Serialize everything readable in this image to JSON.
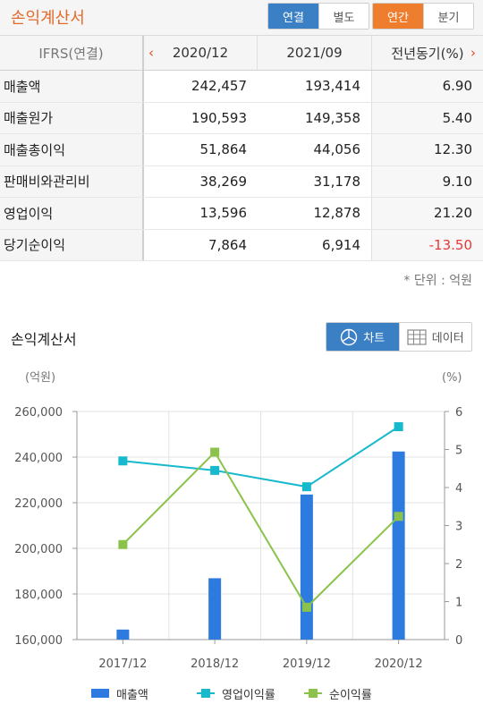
{
  "header": {
    "title": "손익계산서",
    "scope_options": [
      "연결",
      "별도"
    ],
    "scope_selected": "연결",
    "period_options": [
      "연간",
      "분기"
    ],
    "period_selected": "연간"
  },
  "table": {
    "header": [
      "IFRS(연결)",
      "2020/12",
      "2021/09",
      "전년동기(%)"
    ],
    "prev_arrow": "‹",
    "next_arrow": "›",
    "rows": [
      {
        "label": "매출액",
        "v1": "242,457",
        "v2": "193,414",
        "v3": "6.90"
      },
      {
        "label": "매출원가",
        "v1": "190,593",
        "v2": "149,358",
        "v3": "5.40"
      },
      {
        "label": "매출총이익",
        "v1": "51,864",
        "v2": "44,056",
        "v3": "12.30"
      },
      {
        "label": "판매비와관리비",
        "v1": "38,269",
        "v2": "31,178",
        "v3": "9.10"
      },
      {
        "label": "영업이익",
        "v1": "13,596",
        "v2": "12,878",
        "v3": "21.20"
      },
      {
        "label": "당기순이익",
        "v1": "7,864",
        "v2": "6,914",
        "v3": "-13.50"
      }
    ],
    "unit_note": "* 단위 : 억원"
  },
  "chart_section": {
    "title": "손익계산서",
    "view_options": [
      "차트",
      "데이터"
    ],
    "view_selected": "차트"
  },
  "colors": {
    "accent_orange": "#ee7d2e",
    "accent_blue": "#3b7fc4",
    "bar": "#2e7be0",
    "op_margin": "#17b9cc",
    "net_margin": "#8bc34a",
    "negative": "#e53935"
  },
  "chart_data": {
    "type": "bar",
    "categories": [
      "2017/12",
      "2018/12",
      "2019/12",
      "2020/12"
    ],
    "y_left_label": "(억원)",
    "y_right_label": "(%)",
    "y_left_range": [
      160000,
      260000
    ],
    "y_left_ticks": [
      "160,000",
      "180,000",
      "200,000",
      "220,000",
      "240,000",
      "260,000"
    ],
    "y_right_range": [
      0,
      6
    ],
    "y_right_ticks": [
      "0",
      "1",
      "2",
      "3",
      "4",
      "5",
      "6"
    ],
    "grid": true,
    "legend_position": "bottom",
    "series": [
      {
        "name": "매출액",
        "kind": "bar",
        "axis": "left",
        "values": [
          164400,
          186900,
          223600,
          242457
        ]
      },
      {
        "name": "영업이익률",
        "kind": "line",
        "axis": "right",
        "values": [
          4.7,
          4.45,
          4.02,
          5.6
        ]
      },
      {
        "name": "순이익률",
        "kind": "line",
        "axis": "right",
        "values": [
          2.5,
          4.93,
          0.85,
          3.24
        ]
      }
    ]
  }
}
